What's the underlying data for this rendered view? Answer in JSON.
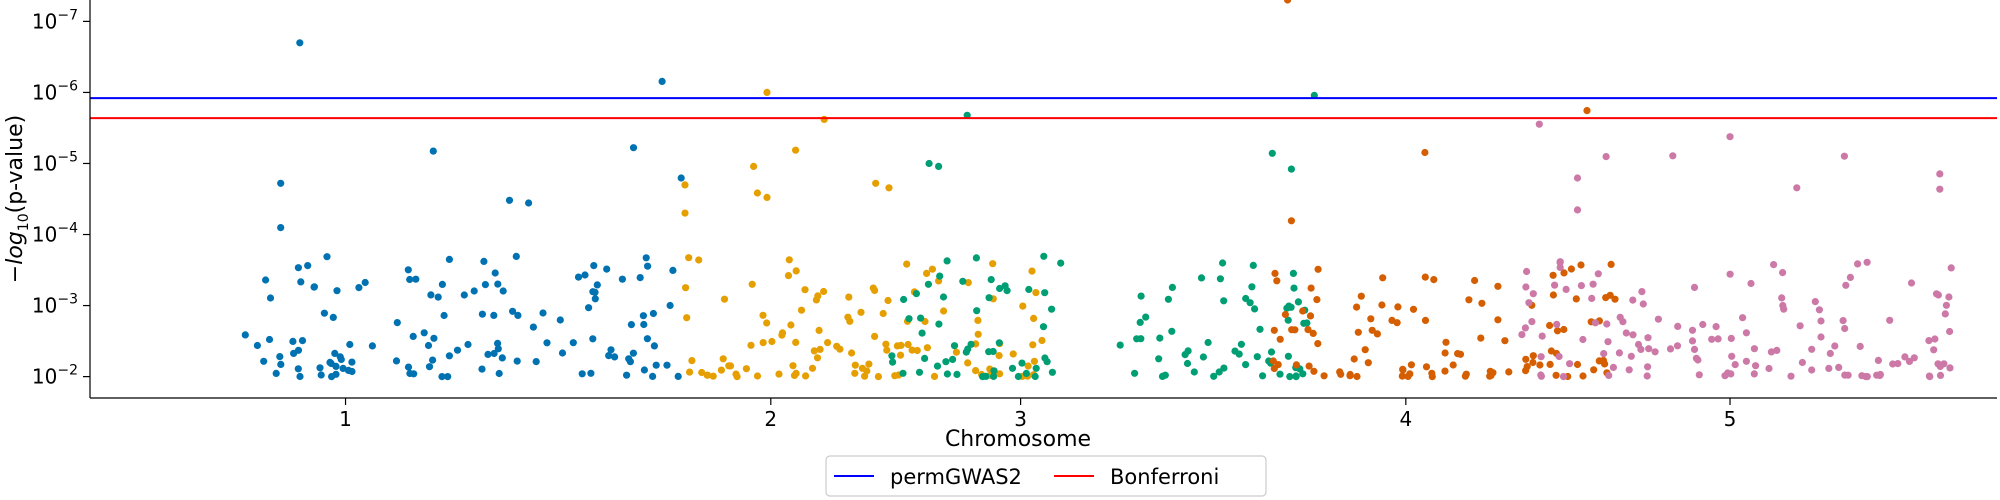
{
  "chart_data": {
    "type": "scatter",
    "title": "",
    "xlabel": "Chromosome",
    "ylabel": "-log10(p-value)",
    "yscale": "log-reversed",
    "ylim": [
      0.02,
      5e-08
    ],
    "y_ticks": [
      {
        "value": 1e-07,
        "mantissa": "10",
        "exp": "−7"
      },
      {
        "value": 1e-06,
        "mantissa": "10",
        "exp": "−6"
      },
      {
        "value": 1e-05,
        "mantissa": "10",
        "exp": "−5"
      },
      {
        "value": 0.0001,
        "mantissa": "10",
        "exp": "−4"
      },
      {
        "value": 0.001,
        "mantissa": "10",
        "exp": "−3"
      },
      {
        "value": 0.01,
        "mantissa": "10",
        "exp": "−2"
      }
    ],
    "x_ticks": [
      "1",
      "2",
      "3",
      "4",
      "5"
    ],
    "grid": false,
    "legend_position": "bottom-center",
    "thresholds": [
      {
        "name": "permGWAS2",
        "value": 1.2e-06,
        "color": "#0000ff"
      },
      {
        "name": "Bonferroni",
        "value": 2.3e-06,
        "color": "#ff0000"
      }
    ],
    "chromosomes": [
      {
        "name": "1",
        "color": "#0072b2",
        "range": [
          0.08,
          0.31
        ],
        "points": [
          [
            0.11,
            2e-07
          ],
          [
            0.3,
            7e-07
          ],
          [
            0.18,
            6.7e-06
          ],
          [
            0.285,
            6e-06
          ],
          [
            0.31,
            1.6e-05
          ],
          [
            0.1,
            1.9e-05
          ],
          [
            0.22,
            3.3e-05
          ],
          [
            0.23,
            3.6e-05
          ],
          [
            0.1,
            8e-05
          ]
        ],
        "segments": [
          [
            0.08,
            0.15
          ],
          [
            0.16,
            0.24
          ],
          [
            0.245,
            0.31
          ]
        ]
      },
      {
        "name": "2",
        "color": "#e69f00",
        "range": [
          0.31,
          0.5
        ],
        "points": [
          [
            0.355,
            1e-06
          ],
          [
            0.385,
            2.4e-06
          ],
          [
            0.37,
            6.5e-06
          ],
          [
            0.348,
            1.1e-05
          ],
          [
            0.412,
            1.9e-05
          ],
          [
            0.419,
            2.2e-05
          ],
          [
            0.35,
            2.6e-05
          ],
          [
            0.355,
            3e-05
          ],
          [
            0.312,
            2e-05
          ],
          [
            0.312,
            5e-05
          ]
        ],
        "segments": [
          [
            0.31,
            0.4
          ],
          [
            0.4,
            0.48
          ],
          [
            0.48,
            0.5
          ]
        ]
      },
      {
        "name": "3",
        "color": "#009e73",
        "range": [
          0.42,
          0.64
        ],
        "points": [
          [
            0.46,
            2.1e-06
          ],
          [
            0.642,
            1.1e-06
          ],
          [
            0.44,
            1e-05
          ],
          [
            0.62,
            7.2e-06
          ],
          [
            0.63,
            1.2e-05
          ],
          [
            0.445,
            1.1e-05
          ]
        ],
        "segments": [
          [
            0.42,
            0.51
          ],
          [
            0.54,
            0.64
          ]
        ]
      },
      {
        "name": "4",
        "color": "#d55e00",
        "range": [
          0.62,
          0.8
        ],
        "points": [
          [
            0.628,
            5e-08
          ],
          [
            0.785,
            1.8e-06
          ],
          [
            0.7,
            7e-06
          ],
          [
            0.63,
            6.4e-05
          ]
        ],
        "segments": [
          [
            0.62,
            0.66
          ],
          [
            0.66,
            0.72
          ],
          [
            0.72,
            0.8
          ]
        ]
      },
      {
        "name": "5",
        "color": "#cc79a7",
        "range": [
          0.75,
          0.98
        ],
        "points": [
          [
            0.76,
            2.8e-06
          ],
          [
            0.78,
            1.6e-05
          ],
          [
            0.795,
            8e-06
          ],
          [
            0.86,
            4.2e-06
          ],
          [
            0.92,
            7.9e-06
          ],
          [
            0.97,
            1.4e-05
          ],
          [
            0.97,
            2.3e-05
          ],
          [
            0.895,
            2.2e-05
          ],
          [
            0.83,
            7.8e-06
          ],
          [
            0.78,
            4.5e-05
          ]
        ],
        "segments": [
          [
            0.75,
            0.85
          ],
          [
            0.85,
            0.98
          ]
        ]
      }
    ]
  }
}
